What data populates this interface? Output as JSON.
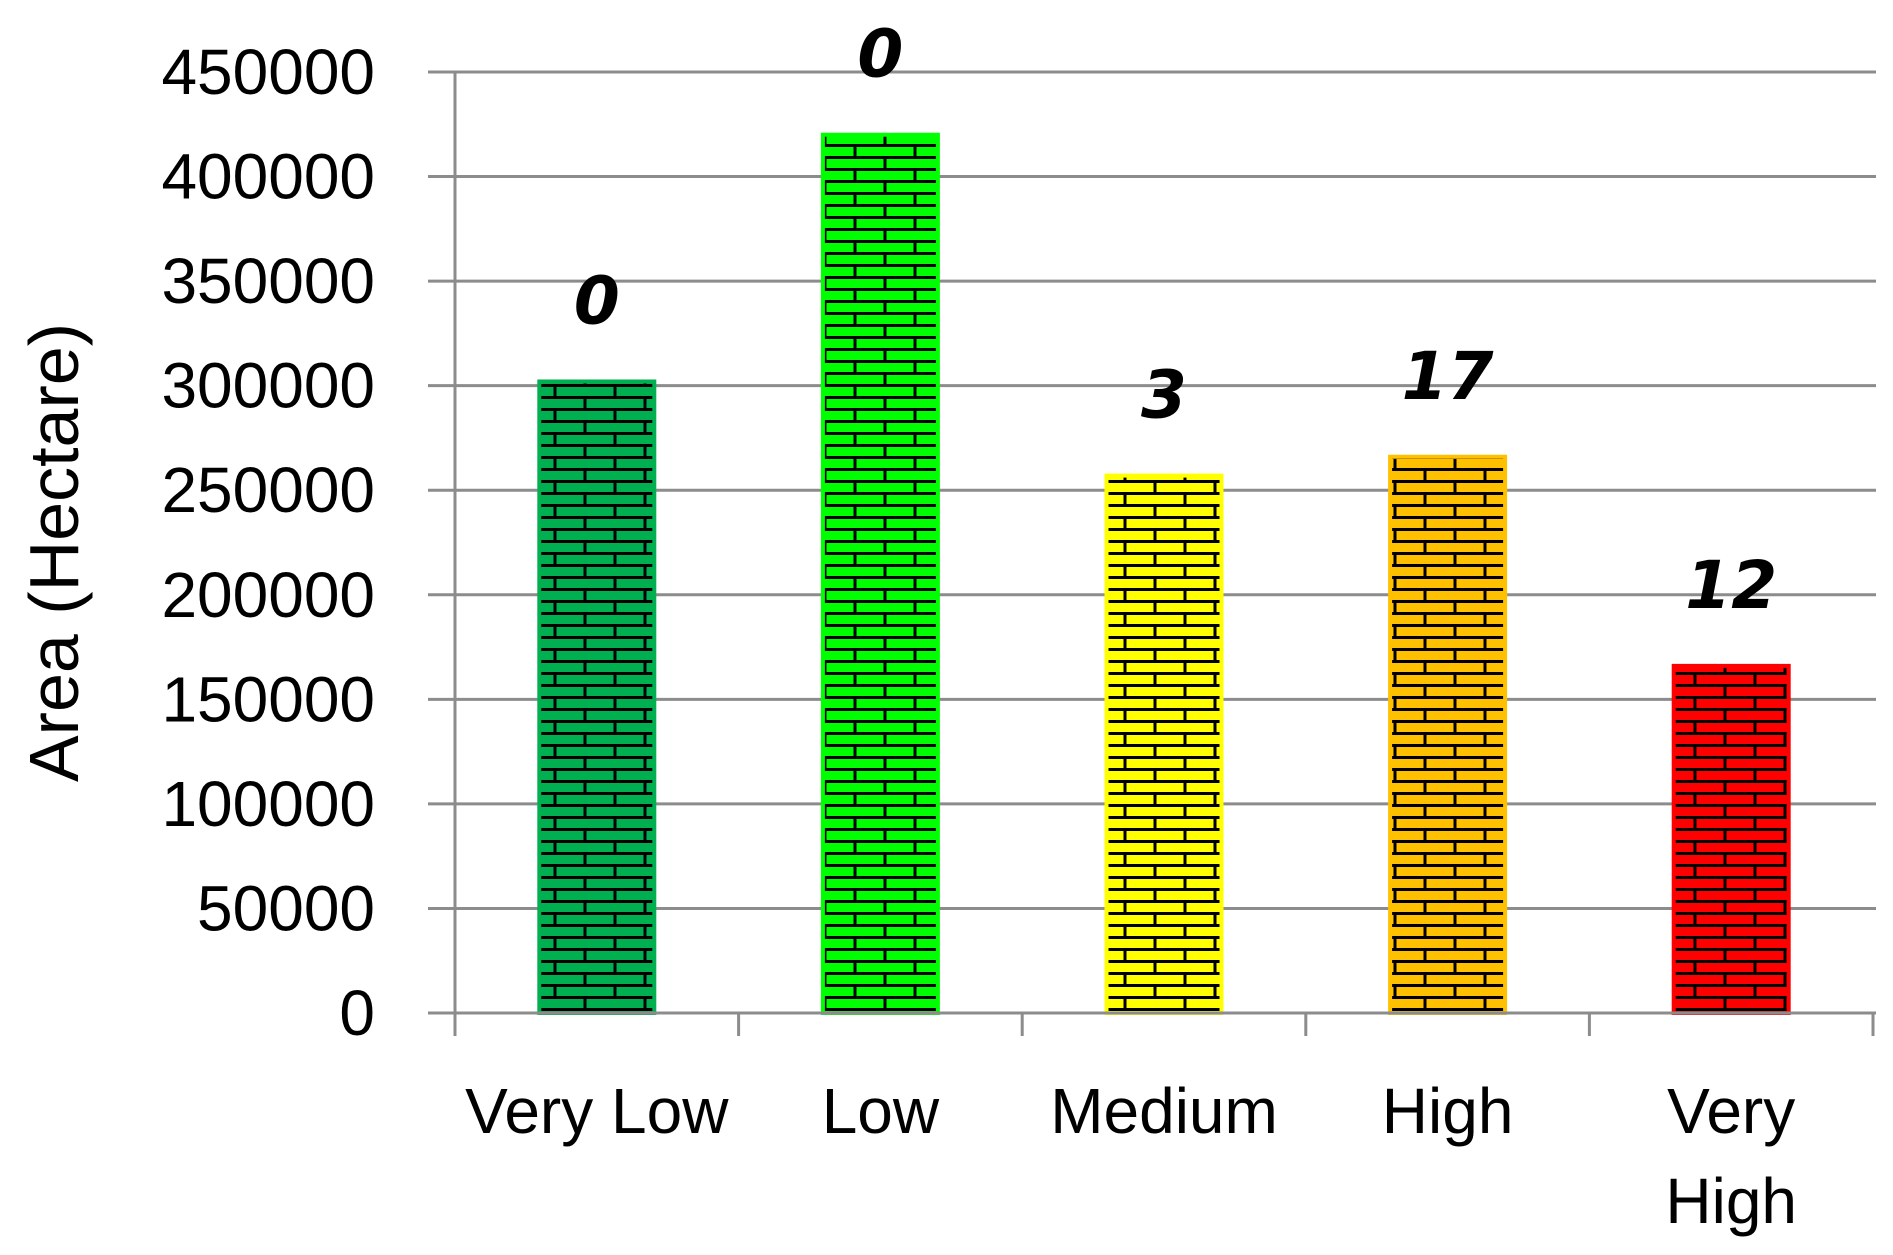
{
  "chart_data": {
    "type": "bar",
    "title": "",
    "xlabel": "",
    "ylabel": "Area (Hectare)",
    "ylim": [
      0,
      450000
    ],
    "ytick_step": 50000,
    "grid": true,
    "legend": "none",
    "categories": [
      [
        "Very Low"
      ],
      [
        "Low"
      ],
      [
        "Medium"
      ],
      [
        "High"
      ],
      [
        "Very",
        "High"
      ]
    ],
    "values": [
      302000,
      420000,
      257000,
      266000,
      166000
    ],
    "data_labels": [
      "0",
      "0",
      "3",
      "17",
      "12"
    ],
    "colors": [
      "#00b050",
      "#00ff00",
      "#ffff00",
      "#ffc000",
      "#ff0000"
    ],
    "fill_pattern": "brick"
  }
}
